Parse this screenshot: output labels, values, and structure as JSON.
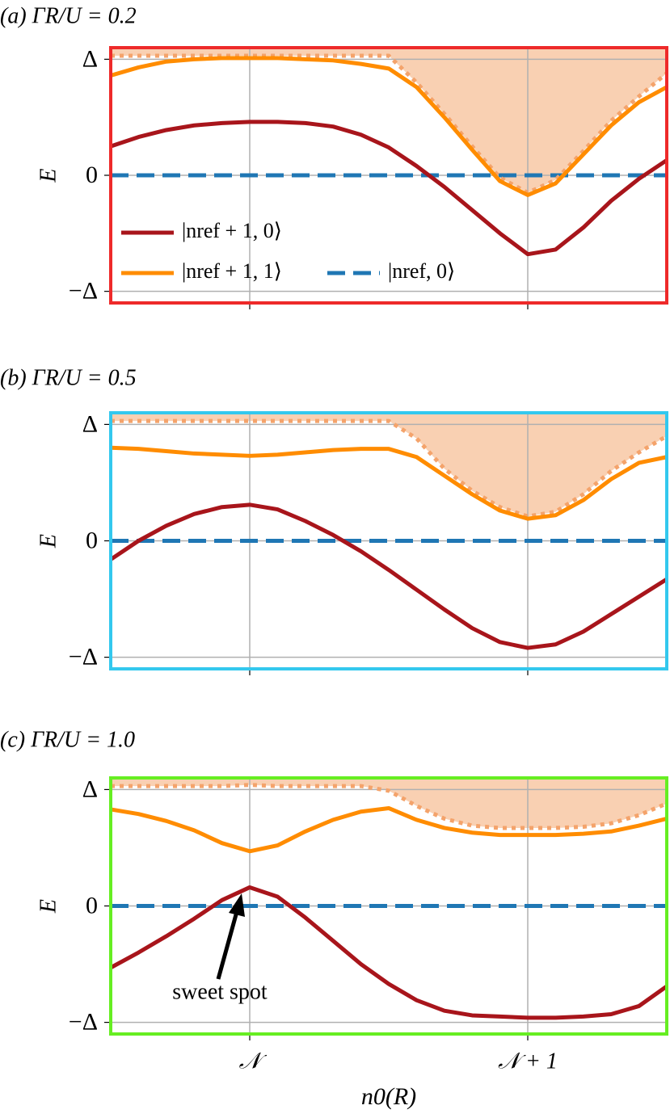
{
  "chart_data": [
    {
      "type": "line",
      "title": "(a)  ΓR/U = 0.2",
      "ylabel": "E",
      "frame_color": "#ee2a2a",
      "legend": "lower left",
      "grid": true,
      "xlim": [
        -0.5,
        1.5
      ],
      "xticks": [
        0,
        1
      ],
      "show_xtick_labels": false,
      "ylim": [
        -1.1,
        1.1
      ],
      "yticks": [
        {
          "value": -1,
          "label": "−Δ"
        },
        0,
        {
          "value": 1,
          "label": "Δ"
        }
      ],
      "x": [
        -0.5,
        -0.4,
        -0.3,
        -0.2,
        -0.1,
        0,
        0.1,
        0.2,
        0.3,
        0.4,
        0.5,
        0.6,
        0.7,
        0.8,
        0.9,
        1,
        1.1,
        1.2,
        1.3,
        1.4,
        1.5
      ],
      "series": [
        {
          "name": "|nref, 0⟩",
          "color": "#1f77b4",
          "style": "dashed",
          "values": [
            0,
            0,
            0,
            0,
            0,
            0,
            0,
            0,
            0,
            0,
            0,
            0,
            0,
            0,
            0,
            0,
            0,
            0,
            0,
            0,
            0
          ]
        },
        {
          "color": "#f4a36b",
          "style": "dotted",
          "fill": "#f9d0b2",
          "values": [
            1.03,
            1.03,
            1.03,
            1.03,
            1.03,
            1.03,
            1.03,
            1.03,
            1.03,
            1.03,
            1.03,
            0.8,
            0.53,
            0.25,
            -0.02,
            -0.15,
            -0.04,
            0.21,
            0.47,
            0.68,
            0.88
          ]
        },
        {
          "name": "|nref + 1, 1⟩",
          "color": "#ff8c00",
          "style": "solid",
          "values": [
            0.86,
            0.93,
            0.98,
            1.0,
            1.01,
            1.01,
            1.01,
            1.0,
            0.99,
            0.96,
            0.92,
            0.76,
            0.5,
            0.22,
            -0.05,
            -0.17,
            -0.07,
            0.18,
            0.43,
            0.63,
            0.76
          ]
        },
        {
          "name": "|nref + 1, 0⟩",
          "color": "#a8151b",
          "style": "solid",
          "values": [
            0.25,
            0.33,
            0.39,
            0.43,
            0.45,
            0.46,
            0.46,
            0.45,
            0.42,
            0.35,
            0.24,
            0.08,
            -0.1,
            -0.3,
            -0.5,
            -0.68,
            -0.64,
            -0.45,
            -0.22,
            -0.03,
            0.13
          ]
        }
      ]
    },
    {
      "type": "line",
      "title": "(b)  ΓR/U = 0.5",
      "ylabel": "E",
      "frame_color": "#33c8ee",
      "grid": true,
      "xlim": [
        -0.5,
        1.5
      ],
      "xticks": [
        0,
        1
      ],
      "show_xtick_labels": false,
      "ylim": [
        -1.1,
        1.1
      ],
      "yticks": [
        {
          "value": -1,
          "label": "−Δ"
        },
        0,
        {
          "value": 1,
          "label": "Δ"
        }
      ],
      "x": [
        -0.5,
        -0.4,
        -0.3,
        -0.2,
        -0.1,
        0,
        0.1,
        0.2,
        0.3,
        0.4,
        0.5,
        0.6,
        0.7,
        0.8,
        0.9,
        1,
        1.1,
        1.2,
        1.3,
        1.4,
        1.5
      ],
      "series": [
        {
          "color": "#1f77b4",
          "style": "dashed",
          "values": [
            0,
            0,
            0,
            0,
            0,
            0,
            0,
            0,
            0,
            0,
            0,
            0,
            0,
            0,
            0,
            0,
            0,
            0,
            0,
            0,
            0
          ]
        },
        {
          "color": "#f4a36b",
          "style": "dotted",
          "fill": "#f9d0b2",
          "values": [
            1.03,
            1.03,
            1.03,
            1.03,
            1.03,
            1.03,
            1.03,
            1.03,
            1.03,
            1.03,
            1.03,
            0.88,
            0.62,
            0.43,
            0.29,
            0.21,
            0.25,
            0.4,
            0.6,
            0.76,
            0.9
          ]
        },
        {
          "color": "#ff8c00",
          "style": "solid",
          "values": [
            0.8,
            0.79,
            0.77,
            0.75,
            0.74,
            0.73,
            0.74,
            0.76,
            0.78,
            0.79,
            0.79,
            0.72,
            0.56,
            0.4,
            0.26,
            0.19,
            0.22,
            0.35,
            0.53,
            0.67,
            0.72
          ]
        },
        {
          "color": "#a8151b",
          "style": "solid",
          "values": [
            -0.16,
            0.0,
            0.13,
            0.23,
            0.29,
            0.31,
            0.27,
            0.17,
            0.05,
            -0.09,
            -0.25,
            -0.42,
            -0.59,
            -0.75,
            -0.87,
            -0.92,
            -0.89,
            -0.78,
            -0.63,
            -0.48,
            -0.33
          ]
        }
      ]
    },
    {
      "type": "line",
      "title": "(c)  ΓR/U = 1.0",
      "ylabel": "E",
      "xlabel": "n0(R)",
      "frame_color": "#66ee22",
      "grid": true,
      "annotation": "sweet spot",
      "xlim": [
        -0.5,
        1.5
      ],
      "xticks": [
        {
          "value": 0,
          "label": "𝒩"
        },
        {
          "value": 1,
          "label": "𝒩 + 1"
        }
      ],
      "show_xtick_labels": true,
      "ylim": [
        -1.1,
        1.1
      ],
      "yticks": [
        {
          "value": -1,
          "label": "−Δ"
        },
        0,
        {
          "value": 1,
          "label": "Δ"
        }
      ],
      "x": [
        -0.5,
        -0.4,
        -0.3,
        -0.2,
        -0.1,
        0,
        0.1,
        0.2,
        0.3,
        0.4,
        0.5,
        0.6,
        0.7,
        0.8,
        0.9,
        1,
        1.1,
        1.2,
        1.3,
        1.4,
        1.5
      ],
      "series": [
        {
          "color": "#1f77b4",
          "style": "dashed",
          "values": [
            0,
            0,
            0,
            0,
            0,
            0,
            0,
            0,
            0,
            0,
            0,
            0,
            0,
            0,
            0,
            0,
            0,
            0,
            0,
            0,
            0
          ]
        },
        {
          "color": "#f4a36b",
          "style": "dotted",
          "fill": "#f9d0b2",
          "values": [
            1.03,
            1.03,
            1.03,
            1.03,
            1.03,
            1.04,
            1.03,
            1.03,
            1.03,
            1.03,
            0.99,
            0.86,
            0.75,
            0.69,
            0.67,
            0.67,
            0.67,
            0.68,
            0.71,
            0.78,
            0.88
          ]
        },
        {
          "color": "#ff8c00",
          "style": "solid",
          "values": [
            0.83,
            0.79,
            0.73,
            0.65,
            0.54,
            0.47,
            0.52,
            0.64,
            0.74,
            0.81,
            0.84,
            0.74,
            0.67,
            0.63,
            0.61,
            0.61,
            0.61,
            0.62,
            0.64,
            0.69,
            0.75
          ]
        },
        {
          "color": "#a8151b",
          "style": "solid",
          "values": [
            -0.53,
            -0.4,
            -0.26,
            -0.11,
            0.05,
            0.16,
            0.08,
            -0.1,
            -0.3,
            -0.5,
            -0.67,
            -0.81,
            -0.9,
            -0.94,
            -0.95,
            -0.96,
            -0.96,
            -0.95,
            -0.93,
            -0.86,
            -0.69
          ]
        }
      ]
    }
  ]
}
